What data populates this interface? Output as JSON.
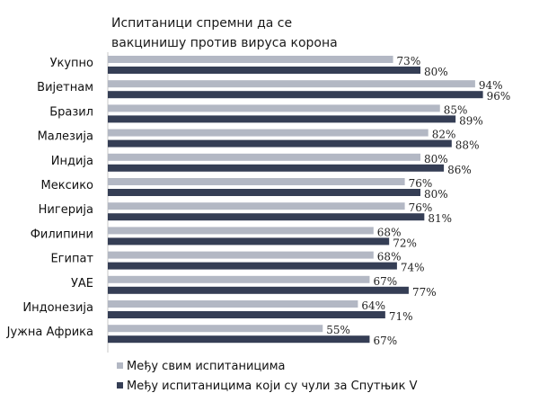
{
  "chart_data": {
    "type": "bar",
    "orientation": "horizontal",
    "title_lines": [
      "Испитаници спремни да се",
      "вакцинишу против вируса корона"
    ],
    "categories": [
      "Укупно",
      "Вијетнам",
      "Бразил",
      "Малезија",
      "Индија",
      "Мексико",
      "Нигерија",
      "Филипини",
      "Египат",
      "УАЕ",
      "Индонезија",
      "Јужна Африка"
    ],
    "series": [
      {
        "name": "Међу свим испитаницима",
        "color": "#b3b8c4",
        "values": [
          73,
          94,
          85,
          82,
          80,
          76,
          76,
          68,
          68,
          67,
          64,
          55
        ],
        "labels": [
          "73%",
          "94%",
          "85%",
          "82%",
          "80%",
          "76%",
          "76%",
          "68%",
          "68%",
          "67%",
          "64%",
          "55%"
        ]
      },
      {
        "name": "Међу испитаницима који су чули за Спутњик V",
        "color": "#353e55",
        "values": [
          80,
          96,
          89,
          88,
          86,
          80,
          81,
          72,
          74,
          77,
          71,
          67
        ],
        "labels": [
          "80%",
          "96%",
          "89%",
          "88%",
          "86%",
          "80%",
          "81%",
          "72%",
          "74%",
          "77%",
          "71%",
          "67%"
        ]
      }
    ],
    "xlim": [
      0,
      100
    ],
    "grid": false,
    "legend_position": "bottom-left"
  }
}
